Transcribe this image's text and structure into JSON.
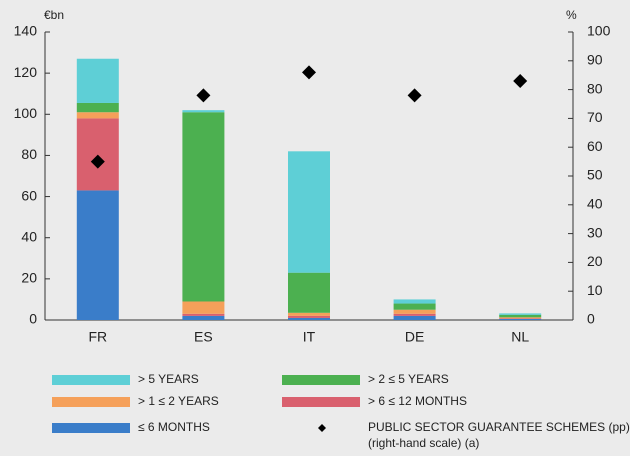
{
  "chart_data": {
    "type": "bar",
    "y_unit": "€bn",
    "y2_unit": "%",
    "categories": [
      "FR",
      "ES",
      "IT",
      "DE",
      "NL"
    ],
    "series": [
      {
        "name": "> 5 YEARS",
        "color": "#5ecfd6",
        "values": [
          21.5,
          1,
          59,
          2,
          0.7
        ]
      },
      {
        "name": "> 2 ≤ 5 YEARS",
        "color": "#4cb050",
        "values": [
          4.5,
          92,
          19.5,
          3,
          1.2
        ]
      },
      {
        "name": "> 1 ≤ 2 YEARS",
        "color": "#f5a05a",
        "values": [
          3,
          6,
          1.5,
          2,
          0.5
        ]
      },
      {
        "name": "> 6 ≤ 12 MONTHS",
        "color": "#d9606e",
        "values": [
          35,
          1,
          1,
          1,
          0.3
        ]
      },
      {
        "name": "≤ 6 MONTHS",
        "color": "#3a7dc9",
        "values": [
          63,
          2,
          1,
          2,
          0.5
        ]
      },
      {
        "name": "PUBLIC SECTOR GUARANTEE SCHEMES (pp)",
        "type": "scatter",
        "axis": "y2",
        "color": "#000000",
        "values": [
          55,
          78,
          86,
          78,
          83
        ]
      }
    ],
    "legend_note": "(right-hand scale) (a)",
    "ylim": [
      0,
      140
    ],
    "yticks": [
      0,
      20,
      40,
      60,
      80,
      100,
      120,
      140
    ],
    "y2lim": [
      0,
      100
    ],
    "y2ticks": [
      0,
      10,
      20,
      30,
      40,
      50,
      60,
      70,
      80,
      90,
      100
    ],
    "grid": false
  }
}
